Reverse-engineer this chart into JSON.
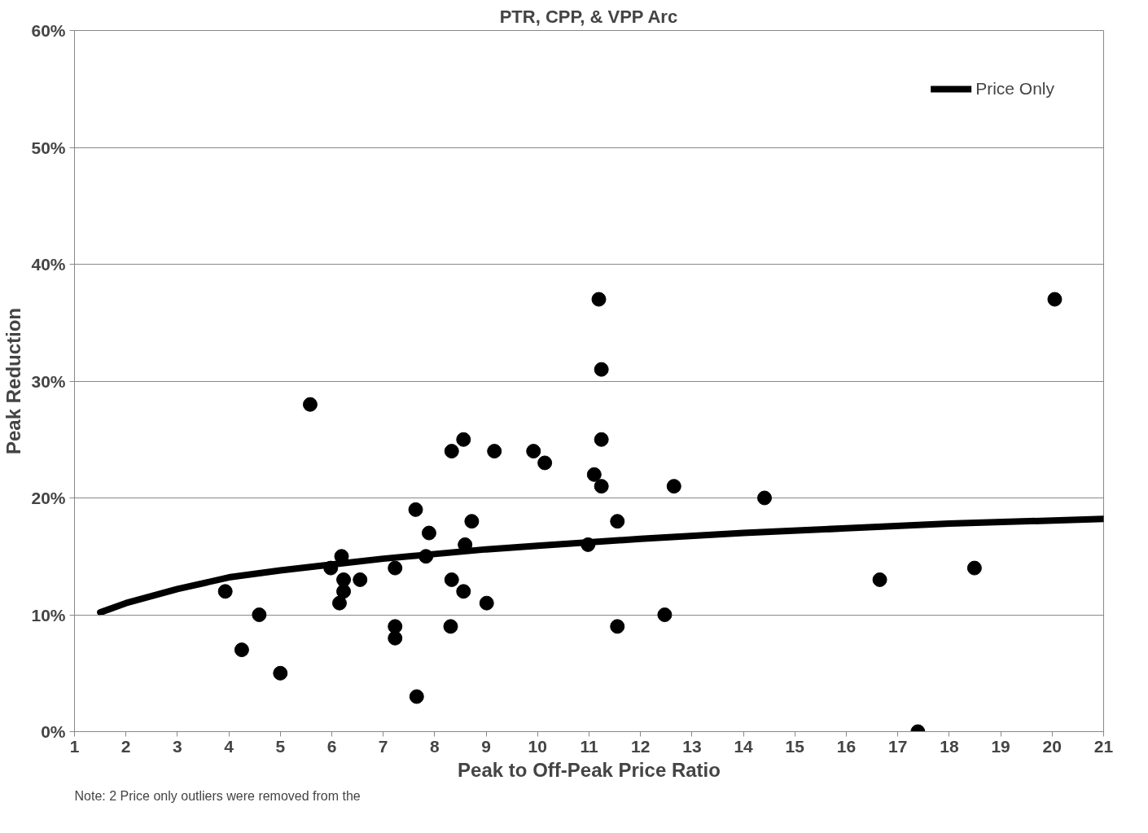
{
  "chart_data": {
    "type": "scatter",
    "title": "PTR, CPP, & VPP Arc",
    "xlabel": "Peak to Off-Peak Price Ratio",
    "ylabel": "Peak Reduction",
    "annotations": [
      "Note: 2 Price only outliers were removed from the"
    ],
    "xlim": [
      1,
      21
    ],
    "xticks": [
      1,
      2,
      3,
      4,
      5,
      6,
      7,
      8,
      9,
      10,
      11,
      12,
      13,
      14,
      15,
      16,
      17,
      18,
      19,
      20,
      21
    ],
    "ylim": [
      0,
      60
    ],
    "yticks": [
      {
        "value": 0,
        "label": "0%"
      },
      {
        "value": 10,
        "label": "10%"
      },
      {
        "value": 20,
        "label": "20%"
      },
      {
        "value": 30,
        "label": "30%"
      },
      {
        "value": 40,
        "label": "40%"
      },
      {
        "value": 50,
        "label": "50%"
      },
      {
        "value": 60,
        "label": "60%"
      }
    ],
    "grid": "y",
    "legend": "top right",
    "series": [
      {
        "color": "#000000",
        "marker": "circle",
        "x": [
          3.93,
          4.25,
          4.59,
          5.0,
          5.58,
          5.98,
          6.19,
          6.23,
          6.23,
          6.15,
          6.55,
          7.23,
          7.23,
          7.23,
          7.63,
          7.65,
          7.89,
          7.83,
          8.33,
          8.33,
          8.31,
          8.56,
          8.59,
          8.56,
          8.72,
          9.16,
          9.01,
          9.92,
          10.14,
          10.98,
          11.1,
          11.19,
          11.24,
          11.24,
          11.24,
          11.55,
          11.55,
          12.47,
          12.65,
          14.41,
          16.65,
          17.39,
          18.49,
          20.05
        ],
        "values": [
          12,
          7,
          10,
          5,
          28,
          14,
          15,
          13,
          12,
          11,
          13,
          14,
          9,
          8,
          19,
          3,
          17,
          15,
          24,
          13,
          9,
          25,
          16,
          12,
          18,
          24,
          11,
          24,
          23,
          16,
          22,
          37,
          31,
          25,
          21,
          18,
          9,
          10,
          21,
          20,
          13,
          0,
          14,
          37
        ]
      },
      {
        "type": "line",
        "name": "Price Only",
        "color": "#000000",
        "marker": "none",
        "x": [
          1.5,
          2,
          3,
          4,
          5,
          6,
          7,
          8,
          9,
          10,
          12,
          14,
          16,
          18,
          21
        ],
        "values": [
          10.2,
          11.0,
          12.2,
          13.2,
          13.8,
          14.3,
          14.8,
          15.2,
          15.6,
          15.9,
          16.5,
          17.0,
          17.4,
          17.8,
          18.2
        ]
      }
    ]
  }
}
